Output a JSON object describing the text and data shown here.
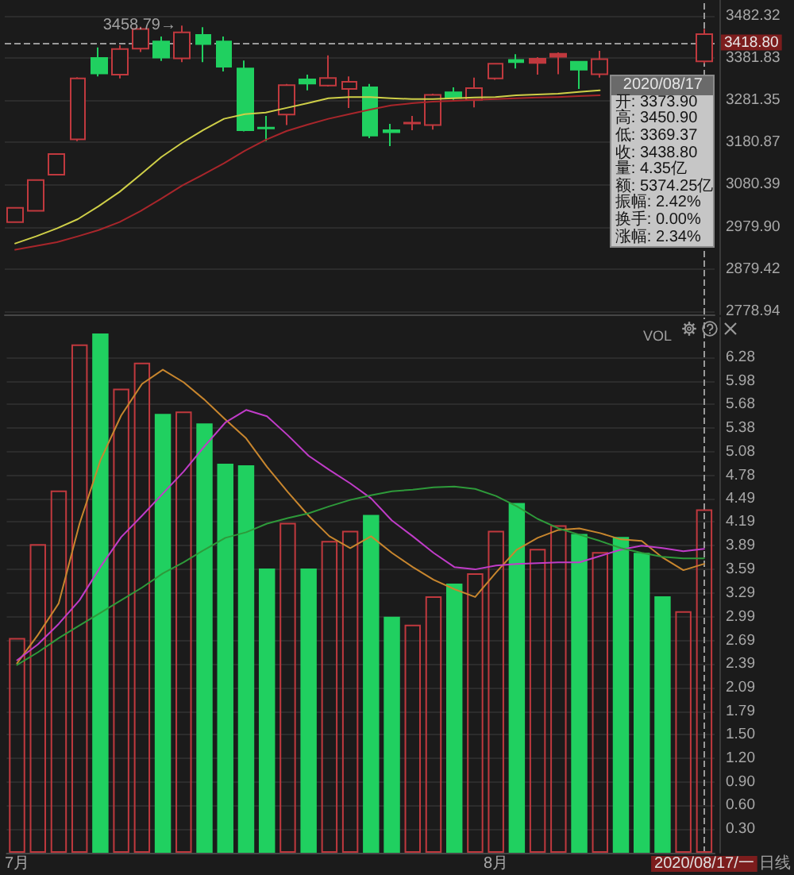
{
  "chart_data": [
    {
      "type": "candlestick",
      "categories": [
        "7月",
        null,
        null,
        null,
        null,
        null,
        null,
        null,
        null,
        null,
        null,
        null,
        null,
        null,
        null,
        null,
        null,
        null,
        null,
        null,
        null,
        null,
        null,
        "8月",
        null,
        null,
        null,
        null,
        null,
        null,
        null,
        null,
        null,
        "2020/08/17/一"
      ],
      "ohlc": [
        [
          2991,
          3025,
          2991,
          3025
        ],
        [
          3018,
          3093,
          3017,
          3091
        ],
        [
          3104,
          3154,
          3102,
          3153
        ],
        [
          3188,
          3336,
          3184,
          3333
        ],
        [
          3382,
          3407,
          3338,
          3345
        ],
        [
          3342,
          3412,
          3333,
          3403
        ],
        [
          3404,
          3456,
          3396,
          3451
        ],
        [
          3421,
          3433,
          3375,
          3383
        ],
        [
          3381,
          3458.79,
          3372,
          3443
        ],
        [
          3437,
          3455,
          3372,
          3415
        ],
        [
          3421,
          3433,
          3350,
          3361
        ],
        [
          3357,
          3376,
          3207,
          3210
        ],
        [
          3216,
          3244,
          3184,
          3214
        ],
        [
          3247,
          3320,
          3222,
          3317
        ],
        [
          3331,
          3342,
          3305,
          3321
        ],
        [
          3316,
          3388,
          3314,
          3334
        ],
        [
          3308,
          3338,
          3263,
          3325
        ],
        [
          3312,
          3320,
          3191,
          3197
        ],
        [
          3210,
          3225,
          3172,
          3205
        ],
        [
          3226,
          3244,
          3210,
          3228
        ],
        [
          3222,
          3297,
          3211,
          3294
        ],
        [
          3300,
          3312,
          3282,
          3287
        ],
        [
          3282,
          3335,
          3264,
          3310
        ],
        [
          3333,
          3370,
          3330,
          3368
        ],
        [
          3377,
          3391,
          3357,
          3372
        ],
        [
          3370,
          3384,
          3342,
          3380
        ],
        [
          3385,
          3395,
          3343,
          3392
        ],
        [
          3373,
          3374,
          3308,
          3354
        ],
        [
          3343,
          3399,
          3335,
          3379
        ],
        null,
        null,
        null,
        null,
        [
          3373.9,
          3450.9,
          3369.37,
          3438.8
        ]
      ],
      "colors": [
        "#c0393e",
        "#c0393e",
        "#c0393e",
        "#c0393e",
        "#20d060",
        "#c0393e",
        "#c0393e",
        "#20d060",
        "#c0393e",
        "#20d060",
        "#20d060",
        "#20d060",
        "#20d060",
        "#c0393e",
        "#20d060",
        "#c0393e",
        "#c0393e",
        "#20d060",
        "#20d060",
        "#c0393e",
        "#c0393e",
        "#20d060",
        "#c0393e",
        "#c0393e",
        "#20d060",
        "#c0393e",
        "#c0393e",
        "#20d060",
        "#c0393e",
        null,
        null,
        null,
        null,
        "#c0393e"
      ],
      "series": [
        {
          "type": "line",
          "color": "#cfcf48",
          "values": [
            2940,
            2957,
            2976,
            2998,
            3029,
            3063,
            3104,
            3146,
            3180,
            3210,
            3237,
            3248,
            3252,
            3263,
            3274,
            3286,
            3289,
            3289,
            3286,
            3284,
            3284,
            3286,
            3288,
            3289,
            3293,
            3295,
            3297,
            3301,
            3305,
            null,
            null,
            null,
            null,
            null
          ]
        },
        {
          "type": "line",
          "color": "#a8262b",
          "values": [
            2925,
            2934,
            2943,
            2957,
            2972,
            2991,
            3017,
            3047,
            3078,
            3104,
            3131,
            3161,
            3187,
            3208,
            3223,
            3237,
            3248,
            3259,
            3269,
            3274,
            3278,
            3280,
            3282,
            3284,
            3286,
            3288,
            3289,
            3291,
            3293,
            null,
            null,
            null,
            null,
            null
          ]
        }
      ],
      "ylim": [
        2771,
        3520
      ],
      "yticks": [
        3482.32,
        3381.83,
        3281.35,
        3180.87,
        3080.39,
        {
          "value": 2979.9,
          "label": "2979.90"
        },
        2879.42,
        2778.94
      ],
      "grid": "y",
      "tick_labels": "y",
      "marker": "none",
      "line_style": "solid",
      "ref_lines": [
        {
          "axis": "y",
          "value": 3418.8,
          "label": "3418.80",
          "color": "#9a9a9a",
          "line_style": "dashed"
        },
        {
          "axis": "x",
          "value": "2020/08/17/一",
          "color": "#9a9a9a",
          "line_style": "dashed"
        }
      ],
      "annotations": [
        "3458.79→",
        {
          "text": "2020/08/17",
          "x": "2020/08/17/一"
        },
        {
          "text": "开: 3373.90",
          "x": "2020/08/17/一"
        },
        {
          "text": "高: 3450.90",
          "x": "2020/08/17/一"
        },
        {
          "text": "低: 3369.37",
          "x": "2020/08/17/一"
        },
        {
          "text": "收: 3438.80",
          "x": "2020/08/17/一"
        },
        {
          "text": "量: 4.35亿",
          "x": "2020/08/17/一"
        },
        {
          "text": "额: 5374.25亿",
          "x": "2020/08/17/一"
        },
        {
          "text": "振幅: 2.42%",
          "x": "2020/08/17/一"
        },
        {
          "text": "换手: 0.00%",
          "x": "2020/08/17/一"
        },
        {
          "text": "涨幅: 2.34%",
          "x": "2020/08/17/一"
        }
      ]
    },
    {
      "type": "bar",
      "title": "VOL",
      "categories": [
        "7月",
        null,
        null,
        null,
        null,
        null,
        null,
        null,
        null,
        null,
        null,
        null,
        null,
        null,
        null,
        null,
        null,
        null,
        null,
        null,
        null,
        null,
        null,
        "8月",
        null,
        null,
        null,
        null,
        null,
        null,
        null,
        null,
        null,
        "2020/08/17/一"
      ],
      "series": [
        {
          "values": [
            2.72,
            3.91,
            4.59,
            6.44,
            6.58,
            5.88,
            6.21,
            5.56,
            5.59,
            5.44,
            4.93,
            4.91,
            3.6,
            4.18,
            3.6,
            3.95,
            4.08,
            4.28,
            2.99,
            2.89,
            3.25,
            3.41,
            3.54,
            4.08,
            4.43,
            3.85,
            4.15,
            4.04,
            3.81,
            4.0,
            3.8,
            3.25,
            3.06,
            4.35
          ],
          "colors": [
            "#c0393e",
            "#c0393e",
            "#c0393e",
            "#c0393e",
            "#20d060",
            "#c0393e",
            "#c0393e",
            "#20d060",
            "#c0393e",
            "#20d060",
            "#20d060",
            "#20d060",
            "#20d060",
            "#c0393e",
            "#20d060",
            "#c0393e",
            "#c0393e",
            "#20d060",
            "#20d060",
            "#c0393e",
            "#c0393e",
            "#20d060",
            "#c0393e",
            "#c0393e",
            "#20d060",
            "#c0393e",
            "#c0393e",
            "#20d060",
            "#c0393e",
            "#20d060",
            "#20d060",
            "#20d060",
            "#c0393e",
            "#c0393e"
          ]
        },
        {
          "type": "line",
          "color": "#c8862e",
          "values": [
            2.4,
            2.76,
            3.16,
            4.17,
            4.97,
            5.54,
            5.94,
            6.12,
            5.96,
            5.74,
            5.49,
            5.25,
            4.89,
            4.57,
            4.27,
            4.01,
            3.86,
            4.01,
            3.8,
            3.62,
            3.46,
            3.34,
            3.24,
            3.55,
            3.84,
            3.99,
            4.09,
            4.11,
            4.05,
            3.97,
            3.95,
            3.74,
            3.58,
            3.66
          ]
        },
        {
          "type": "line",
          "color": "#c03cc8",
          "values": [
            2.44,
            2.64,
            2.9,
            3.2,
            3.62,
            4.0,
            4.27,
            4.55,
            4.83,
            5.15,
            5.45,
            5.61,
            5.53,
            5.29,
            5.03,
            4.85,
            4.68,
            4.49,
            4.21,
            4.01,
            3.8,
            3.62,
            3.59,
            3.64,
            3.66,
            3.67,
            3.68,
            3.68,
            3.76,
            3.84,
            3.89,
            3.86,
            3.82,
            3.85
          ]
        },
        {
          "type": "line",
          "color": "#2e9a3a",
          "values": [
            2.38,
            2.54,
            2.72,
            2.88,
            3.04,
            3.2,
            3.36,
            3.54,
            3.68,
            3.84,
            3.99,
            4.06,
            4.17,
            4.24,
            4.3,
            4.39,
            4.47,
            4.53,
            4.58,
            4.6,
            4.63,
            4.64,
            4.61,
            4.52,
            4.39,
            4.23,
            4.11,
            4.03,
            3.95,
            3.86,
            3.8,
            3.75,
            3.73,
            3.73
          ]
        }
      ],
      "ylim": [
        0,
        6.78
      ],
      "yticks": [
        6.28,
        5.98,
        5.68,
        5.38,
        5.08,
        4.78,
        4.49,
        4.19,
        3.89,
        3.59,
        3.29,
        2.99,
        2.69,
        2.39,
        2.09,
        1.79,
        {
          "value": 1.5,
          "label": "1.50"
        },
        {
          "value": 1.2,
          "label": "1.20"
        },
        {
          "value": 0.9,
          "label": "0.90"
        },
        {
          "value": 0.6,
          "label": "0.60"
        },
        {
          "value": 0.3,
          "label": "0.30"
        }
      ],
      "grid": "y",
      "marker": "none",
      "line_style": "solid",
      "ref_lines": [
        {
          "axis": "x",
          "value": "2020/08/17/一",
          "color": "#9a9a9a",
          "line_style": "dashed"
        }
      ],
      "annotations": [
        "日线"
      ]
    }
  ]
}
